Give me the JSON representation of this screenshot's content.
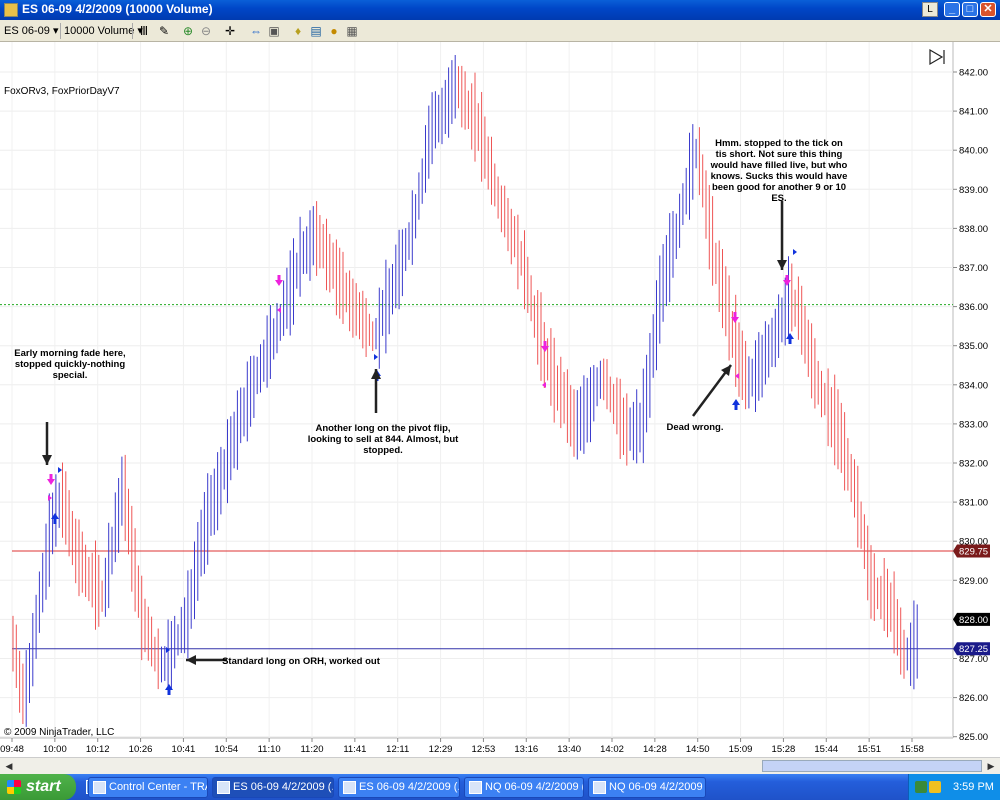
{
  "window": {
    "title": "ES 06-09  4/2/2009 (10000 Volume)",
    "min_label": "_",
    "max_label": "□",
    "close_label": "✕",
    "layout_label": "L"
  },
  "toolbar": {
    "instrument": "ES 06-09",
    "interval": "10000 Volume"
  },
  "chart": {
    "indicators_label": "FoxORv3, FoxPriorDayV7",
    "copyright": "© 2009 NinjaTrader, LLC",
    "price_labels": [
      "842.00",
      "841.00",
      "840.00",
      "839.00",
      "838.00",
      "837.00",
      "836.00",
      "835.00",
      "834.00",
      "833.00",
      "832.00",
      "831.00",
      "830.00",
      "829.00",
      "828.00",
      "827.00",
      "826.00",
      "825.00"
    ],
    "time_labels": [
      "09:48",
      "10:00",
      "10:12",
      "10:26",
      "10:41",
      "10:54",
      "11:10",
      "11:20",
      "11:41",
      "12:11",
      "12:29",
      "12:53",
      "13:16",
      "13:40",
      "14:02",
      "14:28",
      "14:50",
      "15:09",
      "15:28",
      "15:44",
      "15:51",
      "15:58"
    ],
    "markers": {
      "last_price": "828.00",
      "red_line": "829.75",
      "blue_line": "827.25"
    },
    "colors": {
      "up": "#3a3acc",
      "down": "#ee5555",
      "red_line": "#dd3333",
      "blue_line": "#3333aa",
      "green_line": "#22aa22",
      "arrow_long": "#1133dd",
      "arrow_short": "#ee22dd"
    },
    "annotations": {
      "early": "Early morning fade here, stopped quickly-nothing special.",
      "standard": "Standard long on ORH, worked out",
      "pivot": "Another long on the pivot flip, looking to sell at 844. Almost, but stopped.",
      "dead": "Dead wrong.",
      "hmm": "Hmm. stopped to the tick on tis short. Not sure this thing would have filled live, but who knows. Sucks this would have been good for another 9 or 10 ES."
    }
  },
  "taskbar": {
    "start": "start",
    "items": [
      {
        "label": "Control Center - TRA..."
      },
      {
        "label": "ES 06-09  4/2/2009 (..."
      },
      {
        "label": "ES 06-09  4/2/2009 (..."
      },
      {
        "label": "NQ 06-09  4/2/2009 (..."
      },
      {
        "label": "NQ 06-09  4/2/2009 (..."
      }
    ],
    "clock": "3:59 PM"
  }
}
